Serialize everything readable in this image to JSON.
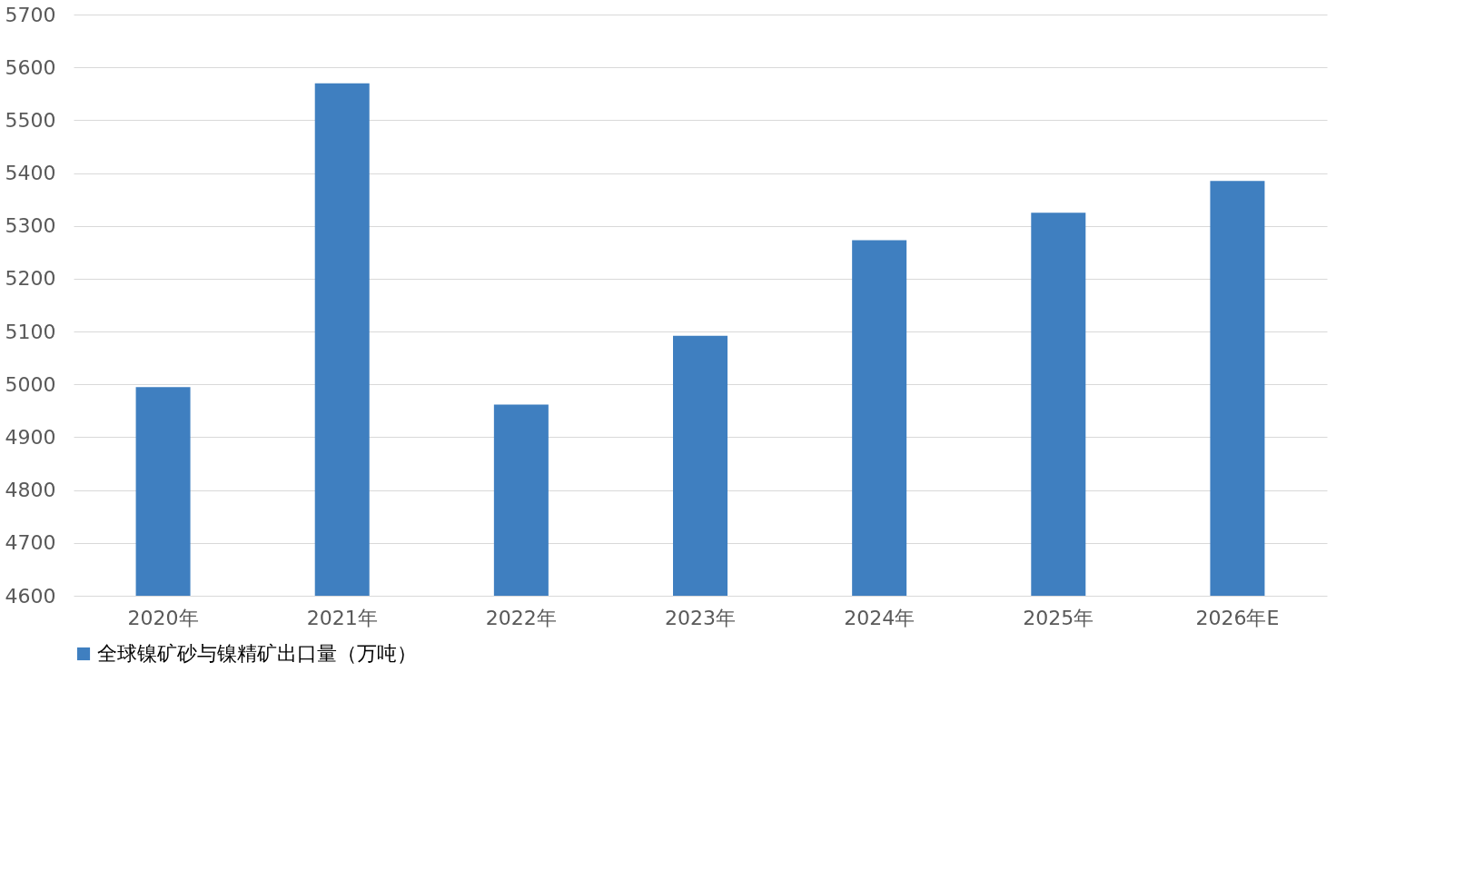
{
  "chart_data": {
    "type": "bar",
    "categories": [
      "2020年",
      "2021年",
      "2022年",
      "2023年",
      "2024年",
      "2025年",
      "2026年E"
    ],
    "series": [
      {
        "name": "全球镍矿砂与镍精矿出口量（万吨）",
        "color": "#3f7fc0",
        "values": [
          4995,
          5570,
          4962,
          5092,
          5273,
          5325,
          5385
        ]
      }
    ],
    "ylim": [
      4600,
      5700
    ],
    "yticks": [
      4600,
      4700,
      4800,
      4900,
      5000,
      5100,
      5200,
      5300,
      5400,
      5500,
      5600,
      5700
    ],
    "grid": "y",
    "legend": "bottom"
  }
}
